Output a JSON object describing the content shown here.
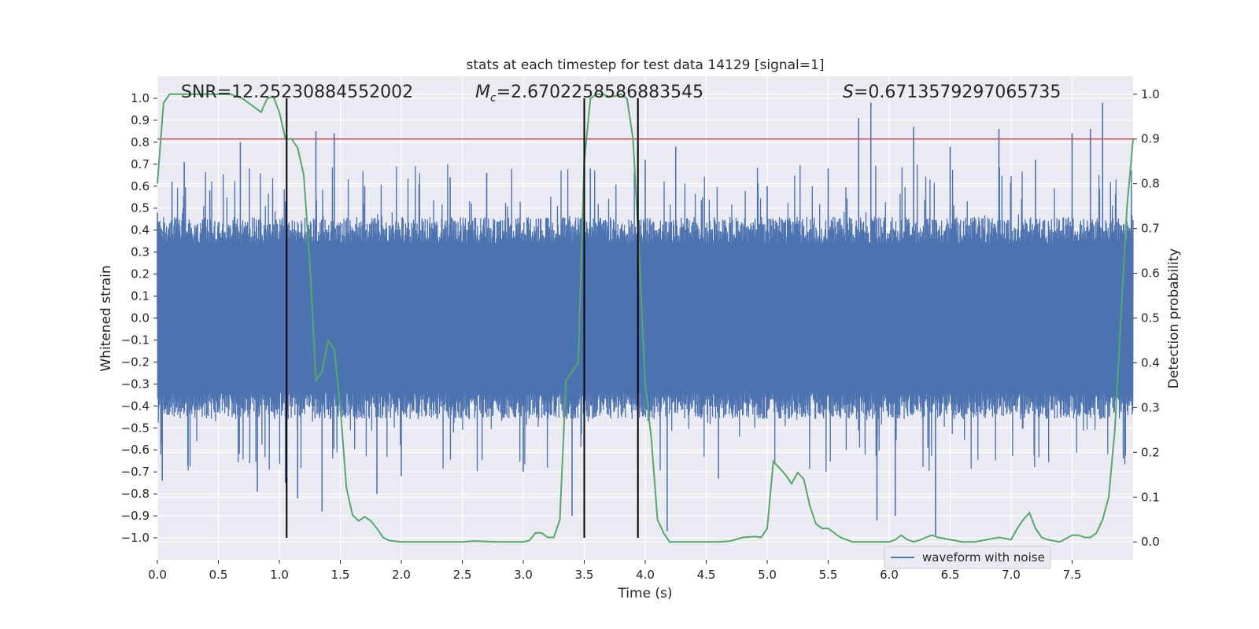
{
  "chart_data": {
    "type": "line",
    "title": "stats at each timestep for test data 14129 [signal=1]",
    "xlabel": "Time (s)",
    "ylabel": "Whitened strain",
    "y2label": "Detection probability",
    "xlim": [
      0.0,
      8.0
    ],
    "ylim": [
      -1.1,
      1.1
    ],
    "y2lim": [
      -0.04,
      1.04
    ],
    "xticks": [
      0.0,
      0.5,
      1.0,
      1.5,
      2.0,
      2.5,
      3.0,
      3.5,
      4.0,
      4.5,
      5.0,
      5.5,
      6.0,
      6.5,
      7.0,
      7.5
    ],
    "yticks": [
      -1.0,
      -0.9,
      -0.8,
      -0.7,
      -0.6,
      -0.5,
      -0.4,
      -0.3,
      -0.2,
      -0.1,
      0.0,
      0.1,
      0.2,
      0.3,
      0.4,
      0.5,
      0.6,
      0.7,
      0.8,
      0.9,
      1.0
    ],
    "y2ticks": [
      0.0,
      0.1,
      0.2,
      0.3,
      0.4,
      0.5,
      0.6,
      0.7,
      0.8,
      0.9,
      1.0
    ],
    "grid": true,
    "annotations": {
      "snr": "SNR=12.25230884552002",
      "mc_symbol": "M",
      "mc_sub": "c",
      "mc_value": "=2.6702258586883545",
      "s_symbol": "S",
      "s_value": "=0.6713579297065735"
    },
    "threshold": {
      "value": 0.9,
      "axis": "y2",
      "color": "#c44e52"
    },
    "vertical_markers": [
      1.06,
      3.5,
      3.94
    ],
    "series": [
      {
        "name": "waveform with noise",
        "axis": "y",
        "color": "#4c72b0",
        "style": "noise",
        "amplitude_typical": 0.4,
        "extreme_peaks": [
          {
            "x": 0.0,
            "y": 0.48
          },
          {
            "x": 0.04,
            "y": -0.74
          },
          {
            "x": 0.12,
            "y": 0.62
          },
          {
            "x": 0.22,
            "y": 0.71
          },
          {
            "x": 0.25,
            "y": -0.67
          },
          {
            "x": 0.43,
            "y": 0.58
          },
          {
            "x": 0.68,
            "y": 0.8
          },
          {
            "x": 0.82,
            "y": -0.79
          },
          {
            "x": 1.05,
            "y": -0.75
          },
          {
            "x": 1.15,
            "y": -0.82
          },
          {
            "x": 1.3,
            "y": 0.85
          },
          {
            "x": 1.35,
            "y": -0.88
          },
          {
            "x": 1.45,
            "y": 0.84
          },
          {
            "x": 1.7,
            "y": 0.6
          },
          {
            "x": 1.8,
            "y": -0.8
          },
          {
            "x": 2.0,
            "y": -0.72
          },
          {
            "x": 2.4,
            "y": 0.64
          },
          {
            "x": 2.7,
            "y": 0.66
          },
          {
            "x": 3.0,
            "y": -0.7
          },
          {
            "x": 3.4,
            "y": -0.9
          },
          {
            "x": 3.55,
            "y": 0.68
          },
          {
            "x": 4.0,
            "y": 0.72
          },
          {
            "x": 4.18,
            "y": -0.97
          },
          {
            "x": 4.25,
            "y": 0.78
          },
          {
            "x": 4.6,
            "y": -0.73
          },
          {
            "x": 5.0,
            "y": 0.6
          },
          {
            "x": 5.5,
            "y": 0.68
          },
          {
            "x": 5.75,
            "y": 0.91
          },
          {
            "x": 5.85,
            "y": 0.98
          },
          {
            "x": 5.9,
            "y": -0.92
          },
          {
            "x": 6.05,
            "y": -0.9
          },
          {
            "x": 6.2,
            "y": 0.87
          },
          {
            "x": 6.38,
            "y": -0.99
          },
          {
            "x": 6.5,
            "y": 0.78
          },
          {
            "x": 6.9,
            "y": 0.86
          },
          {
            "x": 7.2,
            "y": 0.72
          },
          {
            "x": 7.5,
            "y": 0.84
          },
          {
            "x": 7.65,
            "y": 0.86
          },
          {
            "x": 7.75,
            "y": 0.98
          },
          {
            "x": 7.92,
            "y": -0.64
          }
        ]
      },
      {
        "name": "detection probability",
        "axis": "y2",
        "color": "#55a868",
        "x": [
          0.0,
          0.05,
          0.1,
          0.15,
          0.2,
          0.3,
          0.4,
          0.5,
          0.6,
          0.65,
          0.7,
          0.75,
          0.8,
          0.85,
          0.9,
          0.95,
          1.0,
          1.05,
          1.1,
          1.15,
          1.2,
          1.25,
          1.3,
          1.35,
          1.4,
          1.45,
          1.5,
          1.55,
          1.6,
          1.65,
          1.7,
          1.75,
          1.8,
          1.85,
          1.9,
          2.0,
          2.1,
          2.5,
          2.6,
          2.8,
          3.0,
          3.05,
          3.1,
          3.15,
          3.2,
          3.25,
          3.3,
          3.35,
          3.4,
          3.45,
          3.5,
          3.55,
          3.6,
          3.65,
          3.7,
          3.75,
          3.8,
          3.85,
          3.9,
          3.95,
          4.0,
          4.05,
          4.1,
          4.15,
          4.2,
          4.3,
          4.5,
          4.6,
          4.7,
          4.8,
          4.9,
          4.95,
          5.0,
          5.05,
          5.1,
          5.15,
          5.2,
          5.25,
          5.3,
          5.35,
          5.4,
          5.45,
          5.5,
          5.6,
          5.7,
          5.8,
          5.9,
          6.0,
          6.05,
          6.1,
          6.15,
          6.2,
          6.25,
          6.3,
          6.35,
          6.4,
          6.5,
          6.6,
          6.7,
          6.8,
          6.9,
          7.0,
          7.05,
          7.1,
          7.15,
          7.2,
          7.25,
          7.3,
          7.4,
          7.5,
          7.55,
          7.6,
          7.65,
          7.7,
          7.75,
          7.8,
          7.85,
          7.9,
          7.95,
          8.0
        ],
        "values": [
          0.8,
          0.98,
          1.0,
          1.0,
          1.0,
          1.0,
          1.0,
          1.0,
          1.0,
          0.995,
          0.99,
          0.98,
          0.97,
          0.96,
          0.99,
          0.995,
          0.96,
          0.9,
          0.9,
          0.88,
          0.82,
          0.62,
          0.36,
          0.38,
          0.45,
          0.43,
          0.3,
          0.12,
          0.06,
          0.047,
          0.056,
          0.047,
          0.03,
          0.01,
          0.003,
          0.0,
          0.0,
          0.0,
          0.002,
          0.0,
          0.0,
          0.003,
          0.02,
          0.02,
          0.01,
          0.01,
          0.05,
          0.36,
          0.38,
          0.4,
          0.85,
          0.99,
          1.0,
          1.0,
          0.995,
          0.995,
          1.0,
          0.99,
          0.9,
          0.65,
          0.35,
          0.23,
          0.05,
          0.02,
          0.0,
          0.0,
          0.0,
          0.0,
          0.002,
          0.01,
          0.012,
          0.01,
          0.03,
          0.18,
          0.165,
          0.15,
          0.13,
          0.155,
          0.14,
          0.08,
          0.04,
          0.03,
          0.03,
          0.01,
          0.0,
          0.0,
          0.0,
          0.0,
          0.005,
          0.015,
          0.005,
          0.0,
          0.004,
          0.01,
          0.015,
          0.01,
          0.005,
          0.0,
          0.0,
          0.005,
          0.01,
          0.005,
          0.03,
          0.05,
          0.065,
          0.03,
          0.01,
          0.005,
          0.0,
          0.015,
          0.015,
          0.01,
          0.01,
          0.02,
          0.05,
          0.1,
          0.25,
          0.5,
          0.75,
          0.9
        ]
      }
    ],
    "legend": {
      "placement": "lower-right",
      "entries": [
        "waveform with noise"
      ]
    }
  }
}
